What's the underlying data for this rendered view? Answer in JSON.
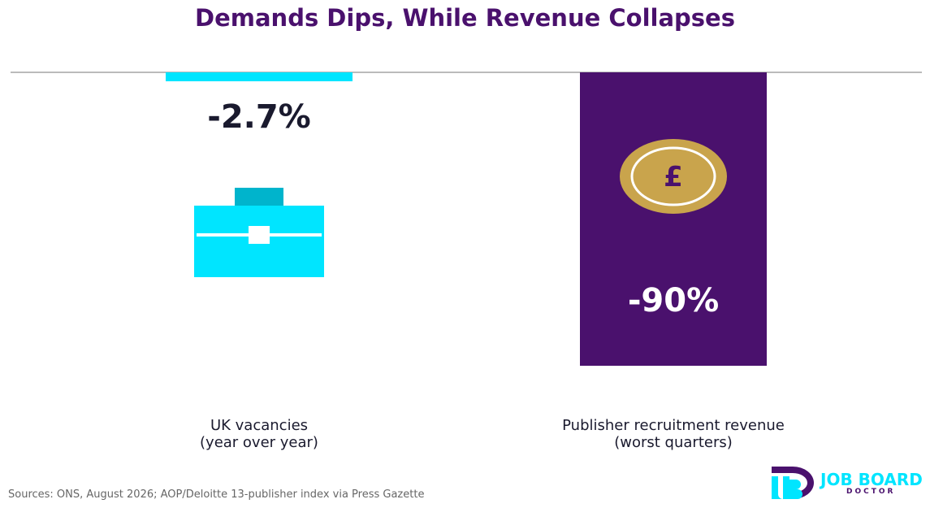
{
  "chart_data": {
    "type": "bar",
    "title": "Demands Dips, While Revenue Collapses",
    "categories": [
      "UK vacancies\n(year over year)",
      "Publisher recruitment revenue\n(worst quarters)"
    ],
    "values": [
      -2.7,
      -90
    ],
    "value_labels": [
      "-2.7%",
      "-90%"
    ],
    "ylim": [
      -95,
      0
    ],
    "grid": false,
    "bar_colors": [
      "#00e5ff",
      "#4a116d"
    ],
    "icons": [
      "briefcase-icon",
      "pound-coin-icon"
    ],
    "icon_symbol": "£"
  },
  "footer": {
    "source": "Sources: ONS, August 2026; AOP/Deloitte 13-publisher index via Press Gazette"
  },
  "logo": {
    "name": "JOB BOARD",
    "subtitle": "DOCTOR",
    "colors": {
      "cyan": "#00e5ff",
      "purple": "#4a116d"
    }
  },
  "colors": {
    "title": "#4a116d",
    "text": "#1a1a2e",
    "baseline": "#bbbbbb",
    "coin": "#c9a44c",
    "source": "#666666"
  }
}
